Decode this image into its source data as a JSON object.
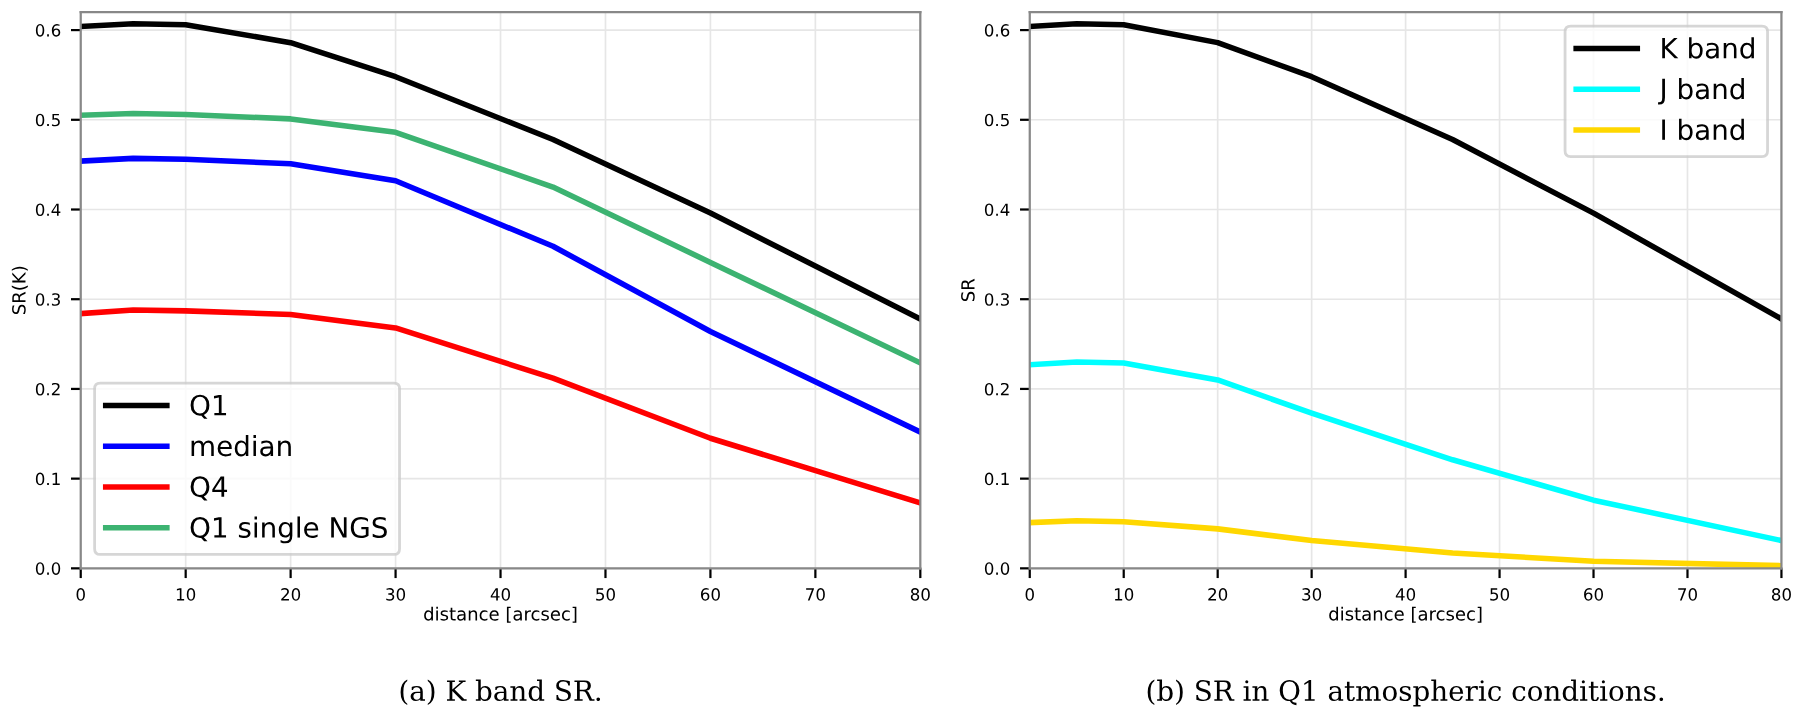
{
  "chart_data": [
    {
      "type": "line",
      "title": "(a) K band SR.",
      "xlabel": "distance [arcsec]",
      "ylabel": "SR(K)",
      "xlim": [
        0,
        80
      ],
      "xticks": [
        0,
        10,
        20,
        30,
        40,
        50,
        60,
        70,
        80
      ],
      "ylim": [
        0,
        0.62
      ],
      "yticks": [
        {
          "value": 0,
          "label": "0.0"
        },
        0.1,
        0.2,
        0.3,
        0.4,
        0.5,
        0.6
      ],
      "grid": true,
      "legend": "bottom left",
      "x": [
        0,
        5,
        10,
        20,
        30,
        45,
        60,
        80
      ],
      "series": [
        {
          "name": "Q1",
          "color": "#000000",
          "values": [
            0.604,
            0.607,
            0.606,
            0.586,
            0.548,
            0.478,
            0.396,
            0.278
          ]
        },
        {
          "name": "median",
          "color": "#0000ff",
          "values": [
            0.454,
            0.457,
            0.456,
            0.451,
            0.432,
            0.359,
            0.264,
            0.152
          ]
        },
        {
          "name": "Q4",
          "color": "#ff0000",
          "values": [
            0.284,
            0.288,
            0.287,
            0.283,
            0.268,
            0.212,
            0.145,
            0.073
          ]
        },
        {
          "name": "Q1 single NGS",
          "color": "#3cb371",
          "values": [
            0.505,
            0.507,
            0.506,
            0.501,
            0.486,
            0.425,
            0.341,
            0.229
          ]
        }
      ]
    },
    {
      "type": "line",
      "title": "(b) SR in Q1 atmospheric conditions.",
      "xlabel": "distance [arcsec]",
      "ylabel": "SR",
      "xlim": [
        0,
        80
      ],
      "xticks": [
        0,
        10,
        20,
        30,
        40,
        50,
        60,
        70,
        80
      ],
      "ylim": [
        0,
        0.62
      ],
      "yticks": [
        {
          "value": 0,
          "label": "0.0"
        },
        0.1,
        0.2,
        0.3,
        0.4,
        0.5,
        0.6
      ],
      "grid": true,
      "legend": "top right",
      "x": [
        0,
        5,
        10,
        20,
        30,
        45,
        60,
        80
      ],
      "series": [
        {
          "name": "K band",
          "color": "#000000",
          "values": [
            0.604,
            0.607,
            0.606,
            0.586,
            0.548,
            0.478,
            0.396,
            0.278
          ]
        },
        {
          "name": "J band",
          "color": "#00ffff",
          "values": [
            0.227,
            0.23,
            0.229,
            0.21,
            0.173,
            0.121,
            0.076,
            0.031
          ]
        },
        {
          "name": "I band",
          "color": "#ffd700",
          "values": [
            0.051,
            0.053,
            0.052,
            0.044,
            0.031,
            0.017,
            0.008,
            0.003
          ]
        }
      ]
    }
  ]
}
